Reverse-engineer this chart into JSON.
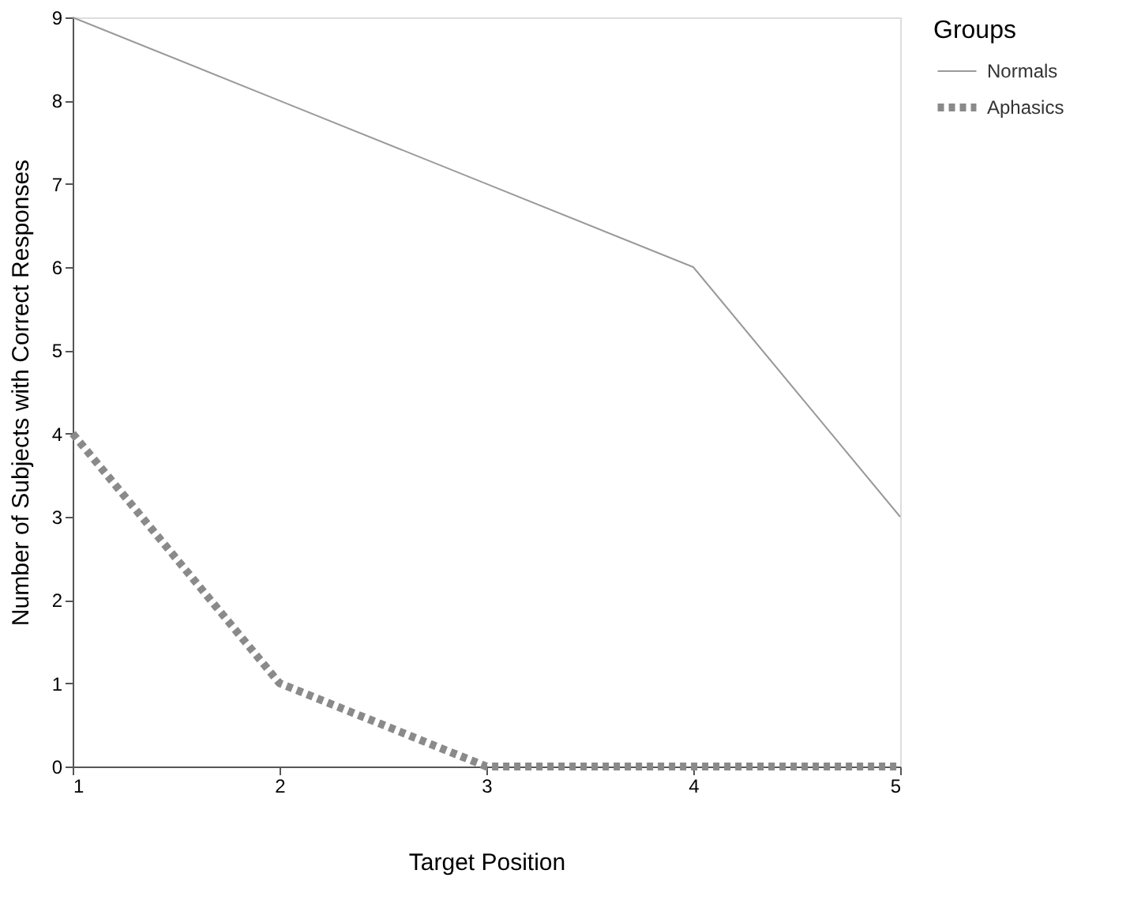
{
  "chart_data": {
    "type": "line",
    "xlabel": "Target Position",
    "ylabel": "Number of Subjects with Correct Responses",
    "legend_title": "Groups",
    "x": [
      1,
      2,
      3,
      4,
      5
    ],
    "series": [
      {
        "name": "Normals",
        "color": "#9a9a9a",
        "line_style": "solid",
        "values": [
          9,
          8,
          7,
          6,
          3
        ]
      },
      {
        "name": "Aphasics",
        "color": "#8a8a8a",
        "line_style": "dotted",
        "values": [
          4,
          1,
          0,
          0,
          0
        ]
      }
    ],
    "xlim": [
      1,
      5
    ],
    "ylim": [
      0,
      9
    ],
    "xticks": [
      1,
      2,
      3,
      4,
      5
    ],
    "yticks": [
      0,
      1,
      2,
      3,
      4,
      5,
      6,
      7,
      8,
      9
    ],
    "grid": false,
    "legend": "right",
    "marker": "none"
  }
}
